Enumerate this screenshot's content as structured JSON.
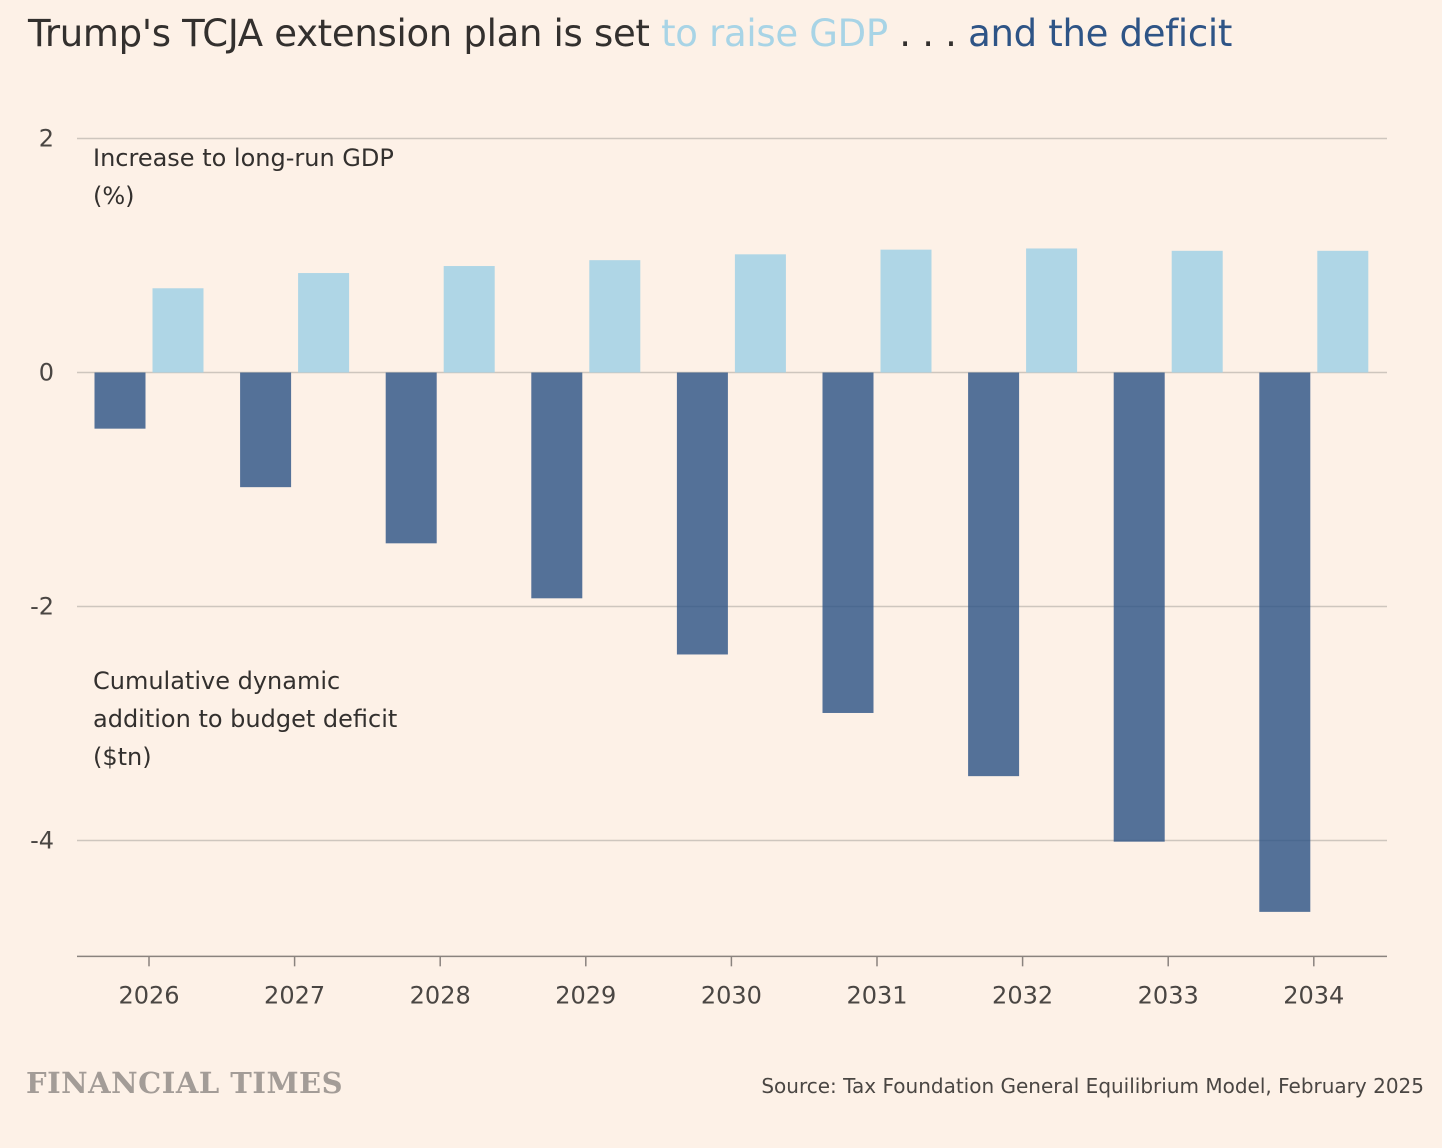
{
  "title": {
    "prefix": "Trump's TCJA extension plan is set ",
    "gdp_part": "to raise GDP",
    "dots": " . . . ",
    "deficit_part": "and the deficit"
  },
  "annotations": {
    "gdp_line1": "Increase to long-run GDP",
    "gdp_line2": "(%)",
    "deficit_line1": "Cumulative dynamic",
    "deficit_line2": "addition to budget deficit",
    "deficit_line3": "($tn)"
  },
  "footer": {
    "logo_text": "FINANCIAL TIMES",
    "source": "Source: Tax Foundation General Equilibrium Model, February 2025"
  },
  "colors": {
    "background": "#FDF1E7",
    "gdp": "#A8D4E6",
    "deficit": "#2E5486",
    "gridline": "#CEC6BE",
    "axis": "#8A837E"
  },
  "chart_data": {
    "type": "bar",
    "categories": [
      "2026",
      "2027",
      "2028",
      "2029",
      "2030",
      "2031",
      "2032",
      "2033",
      "2034"
    ],
    "series": [
      {
        "name": "Cumulative dynamic addition to budget deficit ($tn)",
        "values": [
          -0.48,
          -0.98,
          -1.46,
          -1.93,
          -2.41,
          -2.91,
          -3.45,
          -4.01,
          -4.61
        ]
      },
      {
        "name": "Increase to long-run GDP (%)",
        "values": [
          0.72,
          0.85,
          0.91,
          0.96,
          1.01,
          1.05,
          1.06,
          1.04,
          1.04
        ]
      }
    ],
    "y_ticks": [
      2,
      0,
      -2,
      -4
    ],
    "ylim": [
      -4.99,
      2
    ],
    "grid": true
  }
}
